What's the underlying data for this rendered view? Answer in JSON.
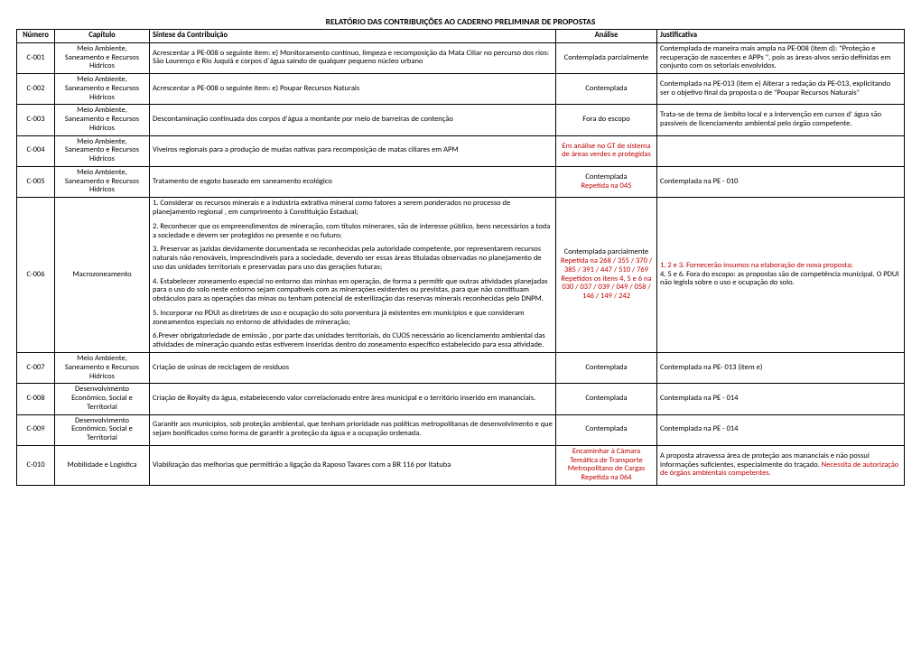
{
  "title": "RELATÓRIO DAS CONTRIBUIÇÕES AO CADERNO PRELIMINAR DE PROPOSTAS",
  "headers": {
    "numero": "Número",
    "capitulo": "Capítulo",
    "sintese": "Síntese da Contribuição",
    "analise": "Análise",
    "justificativa": "Justificativa"
  },
  "rows": [
    {
      "numero": "C-001",
      "capitulo": "Meio Ambiente, Saneamento e Recursos Hídricos",
      "sintese": "Acrescentar a PE-008 o seguinte item: e) Monitoramento contínuo, limpeza e recomposição da Mata Ciliar no percurso dos rios: São Lourenço e Rio Juquiá e corpos d´água saindo de qualquer pequeno núcleo urbano",
      "analise": "Contemplada parcialmente",
      "justificativa": "Contemplada de maneira mais ampla na PE-008 (item d): \"Proteção e recuperação de nascentes e APPs \", pois as áreas-alvos serão definidas em conjunto com os setoriais envolvidos."
    },
    {
      "numero": "C-002",
      "capitulo": "Meio Ambiente, Saneamento e Recursos Hídricos",
      "sintese": "Acrescentar a PE-008 o seguinte item: e) Poupar Recursos Naturais",
      "analise": "Contemplada",
      "justificativa": "Contemplada na PE-013 (Item e) Alterar a redação da PE-013, explicitando ser o objetivo final da proposta o de \"Poupar Recursos Naturais\""
    },
    {
      "numero": "C-003",
      "capitulo": "Meio Ambiente, Saneamento e Recursos Hídricos",
      "sintese": "Descontaminação continuada dos corpos d'água a montante  por meio de barreiras de contenção",
      "analise": "Fora do escopo",
      "justificativa": "Trata-se de tema de âmbito local e a intervenção em cursos d' água são passíveis de licenciamento ambiental pelo órgão competente."
    },
    {
      "numero": "C-004",
      "capitulo": "Meio Ambiente, Saneamento e Recursos Hídricos",
      "sintese": "Viveiros regionais para a produção de mudas nativas para recomposição de matas ciliares em APM",
      "analise_html": "<span class=\"red\">Em análise no GT de sistema de áreas verdes e protegidas</span>",
      "justificativa": ""
    },
    {
      "numero": "C-005",
      "capitulo": "Meio Ambiente, Saneamento e Recursos Hídricos",
      "sintese": "Tratamento de esgoto baseado em saneamento ecológico",
      "analise_html": "Contemplada<br><span class=\"red\">Repetida na 045</span>",
      "justificativa": "Contemplada na PE - 010"
    },
    {
      "numero": "C-006",
      "capitulo": "Macrozoneamento",
      "sintese_html": "<p class=\"para\">1. Considerar os recursos minerais e a indústria extrativa mineral como fatores a serem ponderados no processo de planejamento regional , em cumprimento à Constituição Estadual;</p><p class=\"para\">2. Reconhecer que os empreendimentos de mineração, com títulos minerares, são de interesse público, bens necessários a toda a sociedade e devem ser protegidos no presente e no futuro;</p><p class=\"para\">3. Preservar as jazidas devidamente documentada se reconhecidas pela autoridade competente, por representarem recursos naturais não renováveis, imprescindíveis para a sociedade, devendo ser essas áreas tituladas observadas no planejamento de uso das unidades territoriais e preservadas para uso das gerações futuras;</p><p class=\"para\">4. Estabelecer zoneamento especial no entorno das minhas em operação, de forma a permitir que outras atividades planejadas para o uso do solo neste entorno sejam compatíveis com as minerações existentes ou previstas, para que não constituam obstáculos para as operações das minas ou tenham potencial de esterilização das reservas minerais reconhecidas pelo DNPM.</p><p class=\"para\">5. Incorporar no PDUI as diretrizes de uso e ocupação do solo porventura já existentes em municípios e que consideram zoneamentos especiais no entorno de atividades de mineração;</p><p class=\"para\">6.Prever obrigatoriedade de emissão , por parte das unidades territoriais, do CUOS necessário ao licenciamento ambiental das atividades de mineração quando estas estiverem inseridas dentro do zoneamento específico estabelecido para essa atividade.</p>",
      "analise_html": "Contemplada parcialmente<br><span class=\"red\">Repetida na 268 / 355 / 370 / 385 / 391 / 447 / 510 / 769<br>Repetidos os itens 4, 5 e 6 na 030 / 037 / 039 / 049 / 058 / 146 / 149 / 242</span>",
      "justificativa_html": "<span class=\"red\">1, 2 e 3. Fornecerão insumos na elaboração de nova proposta;</span><br>4, 5 e 6. Fora do escopo: as propostas são de competência municipal. O PDUI não legisla sobre o uso e ocupação do solo."
    },
    {
      "numero": "C-007",
      "capitulo": "Meio Ambiente, Saneamento e Recursos Hídricos",
      "sintese": "Criação de usinas de reciclagem de resíduos",
      "analise": "Contemplada",
      "justificativa": "Contemplada na PE- 013 (item e)"
    },
    {
      "numero": "C-008",
      "capitulo": "Desenvolvimento Econômico, Social e Territorial",
      "sintese": "Criação de Royalty da água, estabelecendo valor correlacionado entre área municipal e o território inserido em mananciais.",
      "analise": "Contemplada",
      "justificativa": "Contemplada na PE - 014"
    },
    {
      "numero": "C-009",
      "capitulo": "Desenvolvimento Econômico, Social e Territorial",
      "sintese": "Garantir aos municípios, sob proteção ambiental, que tenham prioridade nas políticas metropolitanas de desenvolvimento e que sejam bonificados como forma de garantir a proteção da água e a ocupação ordenada.",
      "analise": "Contemplada",
      "justificativa": "Contemplada na PE - 014"
    },
    {
      "numero": "C-010",
      "capitulo": "Mobilidade e Logística",
      "sintese": "Viabilização das melhorias que permitirão a ligação da Raposo Tavares com a BR 116 por Itatuba",
      "analise_html": "<span class=\"red\">Encaminhar à Câmara Temática de Transporte Metropolitano de Cargas<br>Repetida na 064</span>",
      "justificativa_html": "A proposta atravessa área de proteção aos mananciais e não possui informações suficientes, especialmente do traçado. <span class=\"red\">Necessita de autorização de órgãos ambientais competentes.</span>"
    }
  ]
}
